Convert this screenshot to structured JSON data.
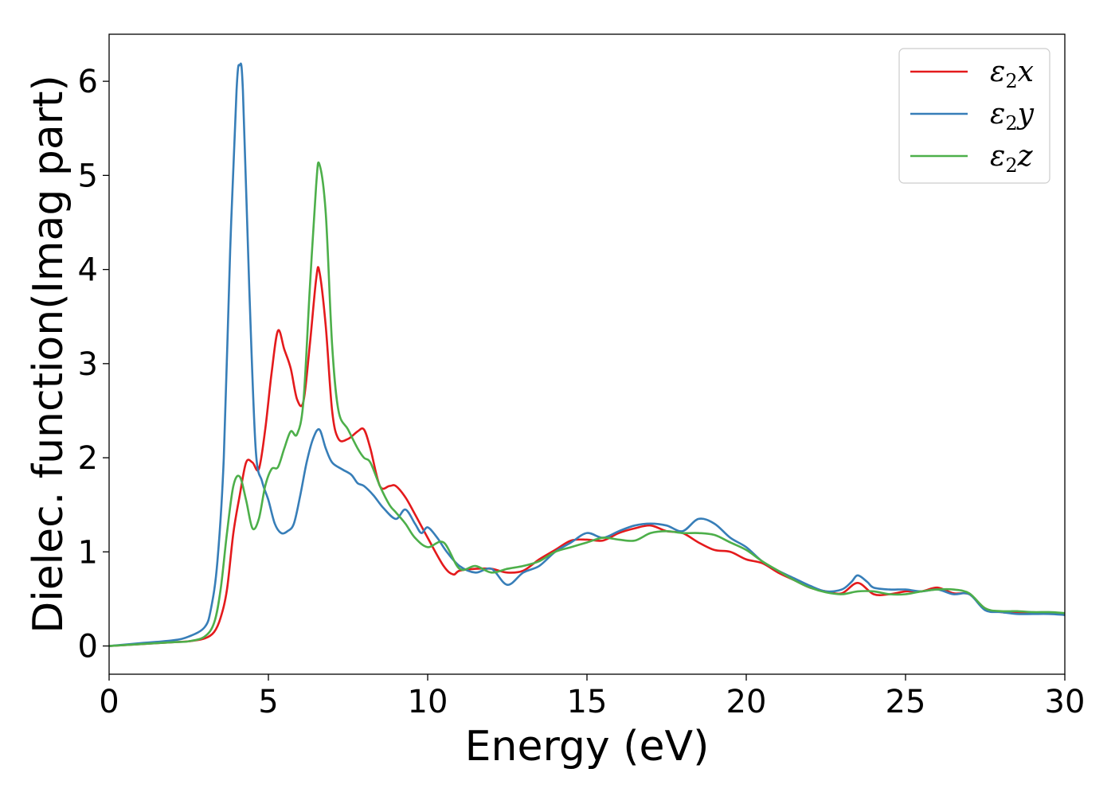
{
  "chart_data": {
    "type": "line",
    "xlabel": "Energy (eV)",
    "ylabel": "Dielec. function(Imag part)",
    "xlim": [
      0,
      30
    ],
    "ylim": [
      -0.3,
      6.5
    ],
    "xticks": [
      0,
      5,
      10,
      15,
      20,
      25,
      30
    ],
    "yticks": [
      0,
      1,
      2,
      3,
      4,
      5,
      6
    ],
    "grid": false,
    "legend_position": "top-right",
    "series": [
      {
        "name": "ε₂x",
        "legend_base": "ε",
        "legend_sub": "2",
        "legend_tail": "x",
        "color": "#e41a1c",
        "x": [
          0,
          1,
          2,
          2.5,
          3,
          3.3,
          3.5,
          3.7,
          3.9,
          4.1,
          4.3,
          4.5,
          4.7,
          4.9,
          5.1,
          5.3,
          5.5,
          5.7,
          5.9,
          6.1,
          6.3,
          6.5,
          6.6,
          6.8,
          7.0,
          7.2,
          7.5,
          7.8,
          8.0,
          8.2,
          8.5,
          8.8,
          9.0,
          9.3,
          9.6,
          10.0,
          10.5,
          10.8,
          11.0,
          11.5,
          12.0,
          12.5,
          13.0,
          13.5,
          14.0,
          14.5,
          15.0,
          15.5,
          16.0,
          16.5,
          17.0,
          17.5,
          18.0,
          18.5,
          19.0,
          19.5,
          20.0,
          20.5,
          21.0,
          21.5,
          22.0,
          22.5,
          23.0,
          23.5,
          24.0,
          24.5,
          25.0,
          25.5,
          26.0,
          26.5,
          27.0,
          27.5,
          28.0,
          28.5,
          29.0,
          29.5,
          30.0
        ],
        "y": [
          0,
          0.02,
          0.04,
          0.05,
          0.08,
          0.15,
          0.3,
          0.6,
          1.2,
          1.6,
          1.95,
          1.95,
          1.88,
          2.3,
          2.9,
          3.35,
          3.15,
          2.95,
          2.62,
          2.6,
          3.2,
          3.9,
          3.98,
          3.4,
          2.5,
          2.2,
          2.2,
          2.28,
          2.3,
          2.1,
          1.7,
          1.7,
          1.7,
          1.58,
          1.4,
          1.15,
          0.85,
          0.76,
          0.8,
          0.82,
          0.82,
          0.78,
          0.8,
          0.92,
          1.02,
          1.12,
          1.13,
          1.12,
          1.2,
          1.25,
          1.28,
          1.22,
          1.2,
          1.1,
          1.02,
          1.0,
          0.92,
          0.88,
          0.78,
          0.7,
          0.62,
          0.58,
          0.56,
          0.67,
          0.55,
          0.55,
          0.58,
          0.58,
          0.62,
          0.56,
          0.55,
          0.4,
          0.36,
          0.35,
          0.35,
          0.35,
          0.33
        ]
      },
      {
        "name": "ε₂y",
        "legend_base": "ε",
        "legend_sub": "2",
        "legend_tail": "y",
        "color": "#377eb8",
        "x": [
          0,
          1,
          2,
          2.5,
          3,
          3.2,
          3.4,
          3.6,
          3.8,
          4.0,
          4.1,
          4.2,
          4.4,
          4.6,
          4.8,
          5.0,
          5.2,
          5.4,
          5.6,
          5.8,
          6.0,
          6.2,
          6.4,
          6.6,
          6.8,
          7.0,
          7.3,
          7.6,
          7.8,
          8.0,
          8.3,
          8.6,
          9.0,
          9.3,
          9.6,
          9.8,
          10.0,
          10.3,
          10.6,
          11.0,
          11.5,
          12.0,
          12.5,
          13.0,
          13.5,
          14.0,
          14.5,
          15.0,
          15.5,
          16.0,
          16.5,
          17.0,
          17.5,
          18.0,
          18.5,
          19.0,
          19.5,
          20.0,
          20.5,
          21.0,
          21.5,
          22.0,
          22.5,
          23.0,
          23.3,
          23.5,
          23.8,
          24.0,
          24.5,
          25.0,
          25.5,
          26.0,
          26.5,
          27.0,
          27.5,
          28.0,
          28.5,
          29.0,
          29.5,
          30.0
        ],
        "y": [
          0,
          0.03,
          0.06,
          0.1,
          0.2,
          0.4,
          0.9,
          2.0,
          4.2,
          5.9,
          6.17,
          5.9,
          3.8,
          2.1,
          1.75,
          1.55,
          1.3,
          1.2,
          1.22,
          1.3,
          1.6,
          1.95,
          2.2,
          2.3,
          2.1,
          1.95,
          1.88,
          1.82,
          1.73,
          1.7,
          1.6,
          1.47,
          1.35,
          1.45,
          1.3,
          1.2,
          1.26,
          1.15,
          1.0,
          0.85,
          0.78,
          0.82,
          0.65,
          0.78,
          0.85,
          1.0,
          1.1,
          1.2,
          1.15,
          1.22,
          1.28,
          1.3,
          1.28,
          1.22,
          1.35,
          1.3,
          1.15,
          1.05,
          0.9,
          0.8,
          0.72,
          0.64,
          0.58,
          0.6,
          0.68,
          0.75,
          0.68,
          0.62,
          0.6,
          0.6,
          0.58,
          0.6,
          0.55,
          0.55,
          0.38,
          0.36,
          0.34,
          0.34,
          0.34,
          0.33
        ]
      },
      {
        "name": "ε₂z",
        "legend_base": "ε",
        "legend_sub": "2",
        "legend_tail": "z",
        "color": "#4daf4a",
        "x": [
          0,
          1,
          2,
          2.5,
          3,
          3.3,
          3.5,
          3.7,
          3.9,
          4.1,
          4.3,
          4.5,
          4.7,
          4.9,
          5.1,
          5.3,
          5.5,
          5.7,
          5.9,
          6.1,
          6.3,
          6.5,
          6.6,
          6.8,
          7.0,
          7.2,
          7.5,
          7.8,
          8.0,
          8.2,
          8.5,
          8.8,
          9.0,
          9.3,
          9.6,
          10.0,
          10.5,
          11.0,
          11.5,
          12.0,
          12.5,
          13.0,
          13.5,
          14.0,
          14.5,
          15.0,
          15.5,
          16.0,
          16.5,
          17.0,
          17.5,
          18.0,
          18.5,
          19.0,
          19.5,
          20.0,
          20.5,
          21.0,
          21.5,
          22.0,
          22.5,
          23.0,
          23.5,
          24.0,
          24.5,
          25.0,
          25.5,
          26.0,
          26.5,
          27.0,
          27.5,
          28.0,
          28.5,
          29.0,
          29.5,
          30.0
        ],
        "y": [
          0,
          0.02,
          0.04,
          0.05,
          0.1,
          0.25,
          0.6,
          1.2,
          1.7,
          1.8,
          1.55,
          1.25,
          1.35,
          1.7,
          1.88,
          1.9,
          2.1,
          2.28,
          2.25,
          2.6,
          3.8,
          4.9,
          5.12,
          4.6,
          3.2,
          2.5,
          2.3,
          2.1,
          2.0,
          1.95,
          1.7,
          1.5,
          1.42,
          1.3,
          1.15,
          1.05,
          1.1,
          0.82,
          0.85,
          0.78,
          0.82,
          0.85,
          0.9,
          1.0,
          1.05,
          1.1,
          1.15,
          1.13,
          1.12,
          1.2,
          1.22,
          1.2,
          1.2,
          1.18,
          1.1,
          1.02,
          0.9,
          0.8,
          0.7,
          0.62,
          0.57,
          0.55,
          0.58,
          0.58,
          0.55,
          0.55,
          0.58,
          0.6,
          0.6,
          0.56,
          0.4,
          0.37,
          0.37,
          0.36,
          0.36,
          0.35
        ]
      }
    ]
  }
}
